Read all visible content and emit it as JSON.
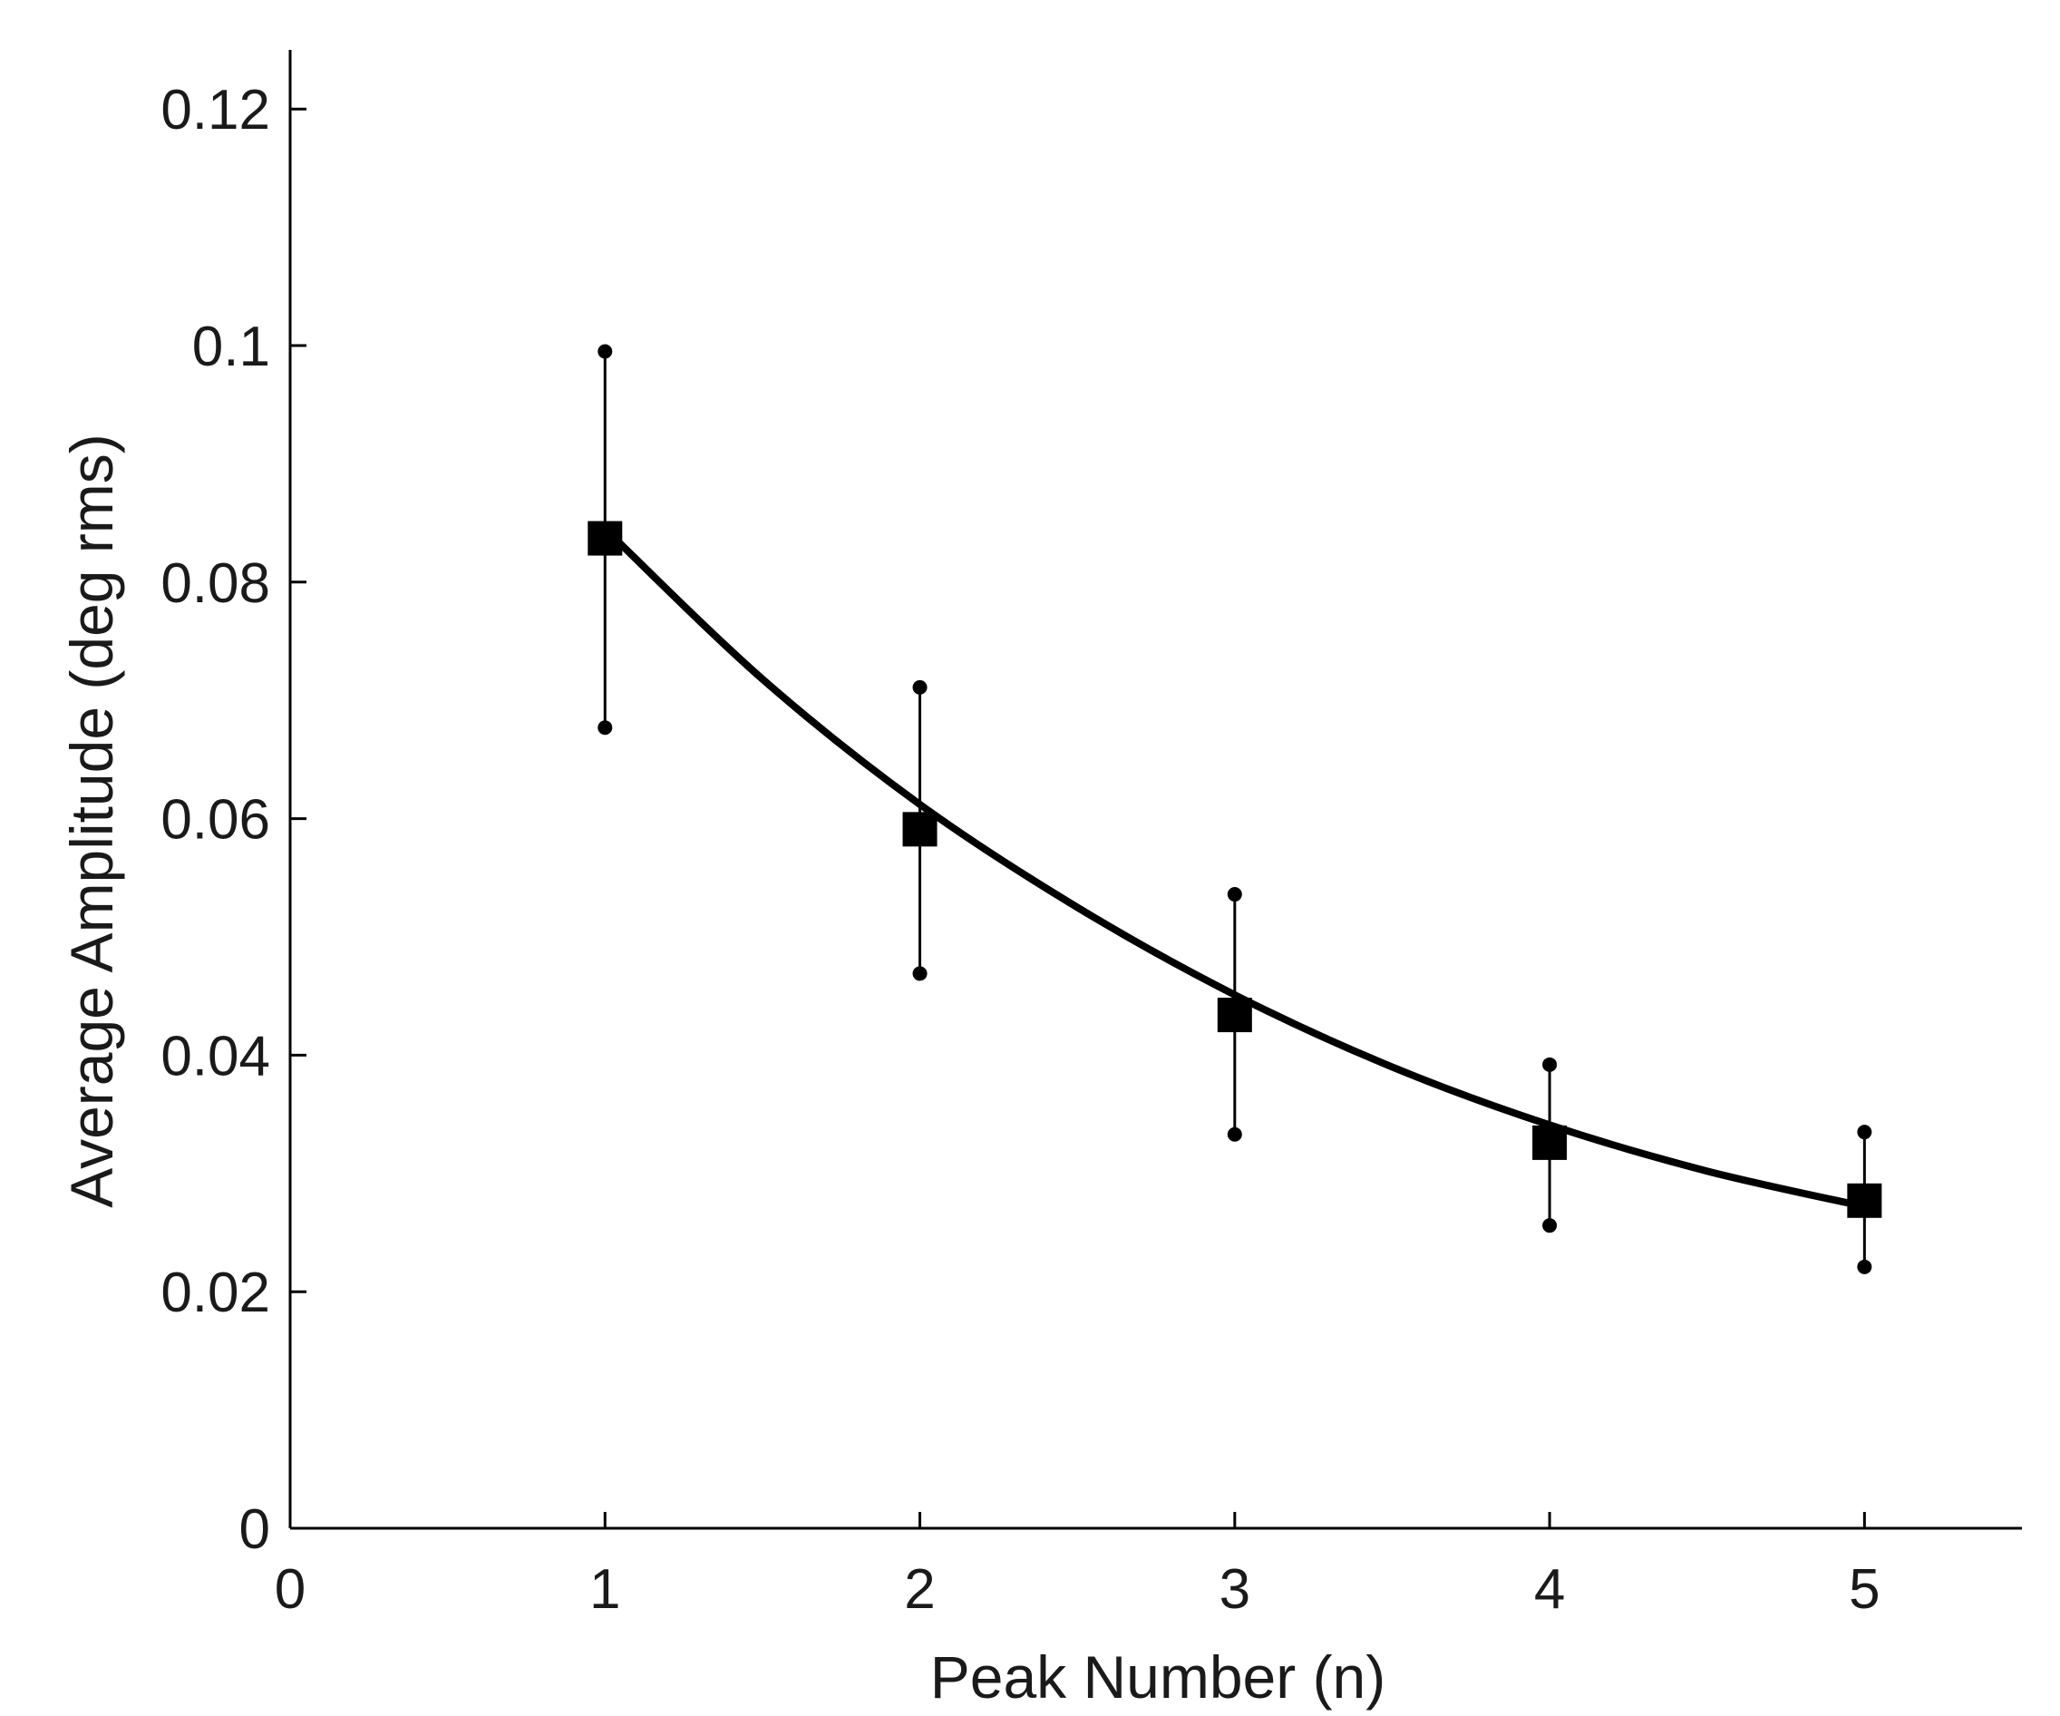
{
  "chart_data": {
    "type": "scatter",
    "xlabel": "Peak Number (n)",
    "ylabel": "Average Amplitude (deg rms)",
    "xlim": [
      0,
      5.5
    ],
    "ylim": [
      0,
      0.125
    ],
    "x_ticks": [
      0,
      1,
      2,
      3,
      4,
      5
    ],
    "y_ticks": [
      0,
      0.02,
      0.04,
      0.06,
      0.08,
      0.1,
      0.12
    ],
    "x_tick_labels": [
      "0",
      "1",
      "2",
      "3",
      "4",
      "5"
    ],
    "y_tick_labels": [
      "0",
      "0.02",
      "0.04",
      "0.06",
      "0.08",
      "0.1",
      "0.12"
    ],
    "grid": false,
    "legend": "none",
    "series": [
      {
        "marker": "square",
        "color": "#000000",
        "x": [
          1,
          2,
          3,
          4,
          5
        ],
        "y": [
          0.0837,
          0.0591,
          0.0434,
          0.0326,
          0.0277
        ],
        "error_low": [
          0.0677,
          0.0469,
          0.0333,
          0.0256,
          0.0221
        ],
        "error_high": [
          0.0995,
          0.0711,
          0.0536,
          0.0392,
          0.0335
        ]
      },
      {
        "kind": "fit-curve",
        "color": "#000000",
        "x": [
          1.0,
          1.5,
          2.0,
          2.5,
          3.0,
          3.5,
          4.0,
          4.5,
          5.0
        ],
        "y": [
          0.0845,
          0.0718,
          0.0612,
          0.0525,
          0.0451,
          0.039,
          0.0341,
          0.0302,
          0.0272
        ]
      }
    ]
  }
}
